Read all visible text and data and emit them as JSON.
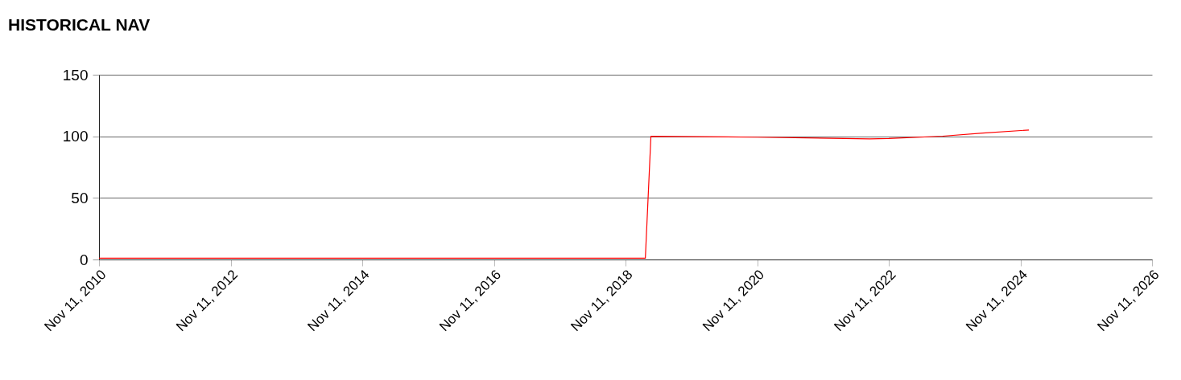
{
  "chart_data": {
    "type": "line",
    "title": "HISTORICAL NAV",
    "x": [
      "2010-11-11",
      "2019-03-01",
      "2019-04-01",
      "2020-05-20",
      "2020-11-11",
      "2022-07-28",
      "2022-11-11",
      "2023-09-06",
      "2024-04-16",
      "2024-12-28"
    ],
    "series": [
      {
        "color": "#ff0000",
        "values": [
          1,
          1,
          100,
          99.6,
          99.3,
          97.9,
          98.2,
          100.1,
          102.6,
          105.1
        ]
      }
    ],
    "xlim": [
      "2010-11-11",
      "2026-11-11"
    ],
    "xticks": [
      {
        "value": "2010-11-11",
        "label": "Nov 11, 2010"
      },
      {
        "value": "2012-11-11",
        "label": "Nov 11, 2012"
      },
      {
        "value": "2014-11-11",
        "label": "Nov 11, 2014"
      },
      {
        "value": "2016-11-11",
        "label": "Nov 11, 2016"
      },
      {
        "value": "2018-11-11",
        "label": "Nov 11, 2018"
      },
      {
        "value": "2020-11-11",
        "label": "Nov 11, 2020"
      },
      {
        "value": "2022-11-11",
        "label": "Nov 11, 2022"
      },
      {
        "value": "2024-11-11",
        "label": "Nov 11, 2024"
      },
      {
        "value": "2026-11-11",
        "label": "Nov 11, 2026"
      }
    ],
    "ylim": [
      0,
      150
    ],
    "yticks": [
      0,
      50,
      100,
      150
    ],
    "grid": "y",
    "marker": "none",
    "line_style": "solid"
  }
}
